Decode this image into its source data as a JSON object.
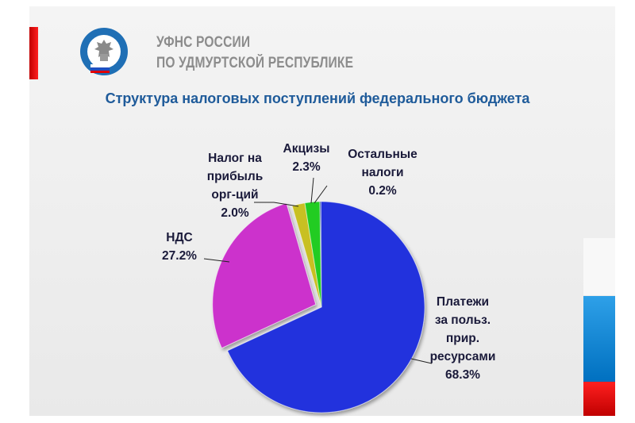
{
  "header": {
    "org_line1": "УФНС РОССИИ",
    "org_line2": "ПО УДМУРТСКОЙ РЕСПУБЛИКЕ",
    "emblem_text": "ФЕДЕРАЛЬНАЯ НАЛОГОВАЯ СЛУЖБА"
  },
  "colors": {
    "accent_red": "#e00000",
    "accent_blue": "#0070c0",
    "title": "#1f5b9a"
  },
  "chart_data": {
    "type": "pie",
    "title": "Структура налоговых поступлений федерального бюджета",
    "slices": [
      {
        "label": [
          "Остальные",
          "налоги"
        ],
        "value": 0.2,
        "value_label": "0.2%",
        "color": "#0f3f8f"
      },
      {
        "label": [
          "Платежи",
          "за польз.",
          "прир.",
          "ресурсами"
        ],
        "value": 68.3,
        "value_label": "68.3%",
        "color": "#2233dd"
      },
      {
        "label": [
          "НДС"
        ],
        "value": 27.2,
        "value_label": "27.2%",
        "color": "#cc33cc"
      },
      {
        "label": [
          "Налог на",
          "прибыль",
          "орг-ций"
        ],
        "value": 2.0,
        "value_label": "2.0%",
        "color": "#c8c020"
      },
      {
        "label": [
          "Акцизы"
        ],
        "value": 2.3,
        "value_label": "2.3%",
        "color": "#22cc22"
      }
    ]
  }
}
